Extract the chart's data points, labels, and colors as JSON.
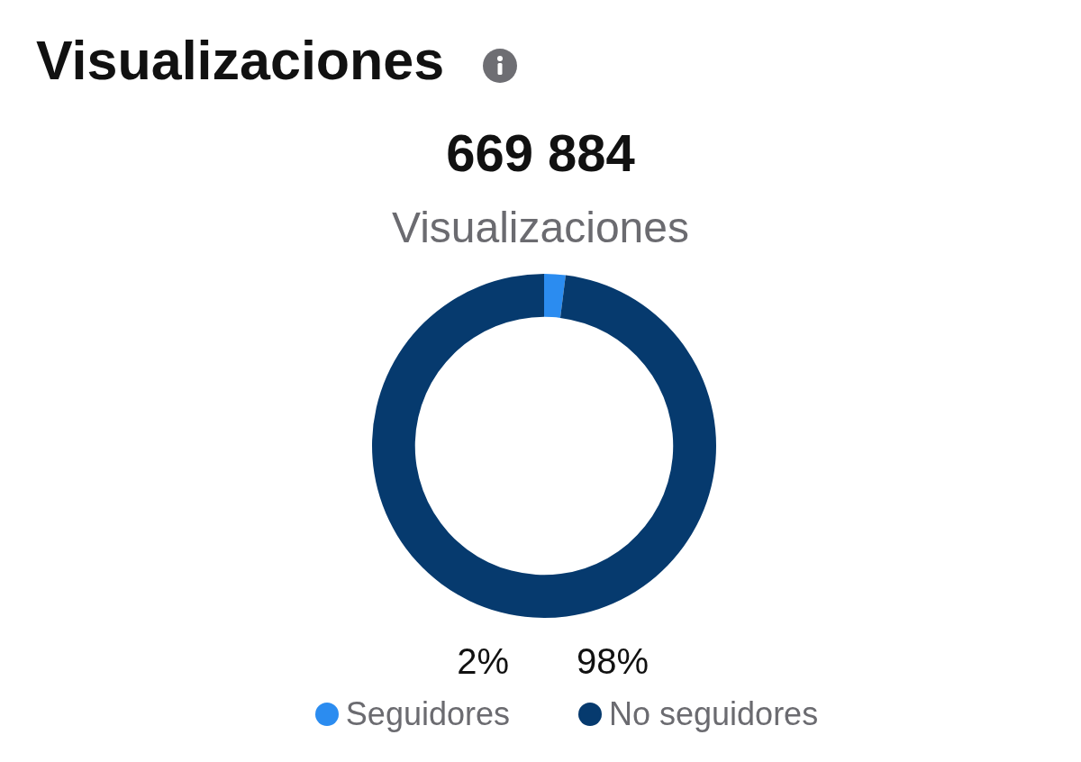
{
  "chart_data": {
    "type": "donut",
    "title": "Visualizaciones",
    "annotations": [
      "669 884",
      "Visualizaciones"
    ],
    "categories": [
      "Seguidores",
      "No seguidores"
    ],
    "values": [
      2,
      98
    ],
    "colors": [
      "#2b8cf0",
      "#063a6e"
    ],
    "value_labels": [
      "2%",
      "98%"
    ],
    "legend": "bottom"
  }
}
